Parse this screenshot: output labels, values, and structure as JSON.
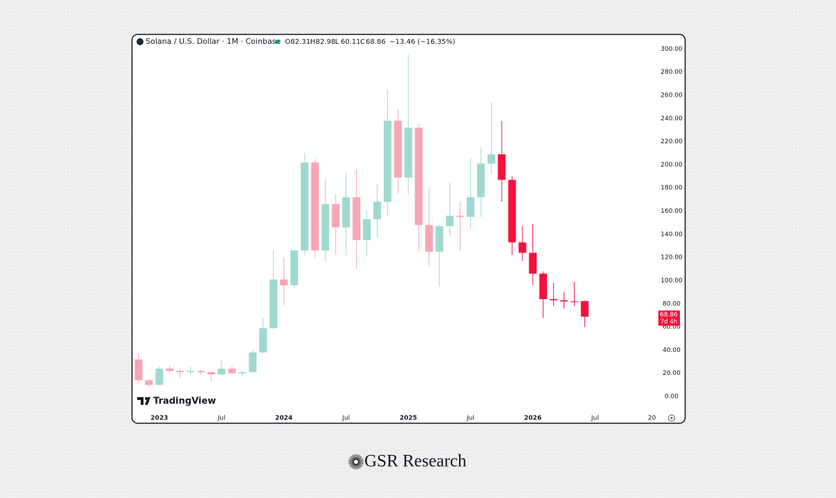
{
  "chart_data": {
    "type": "candlestick",
    "title": "Solana / U.S. Dollar · 1M · Coinbase",
    "ohlc_letters": [
      "O",
      "H",
      "L",
      "C"
    ],
    "change": "−13.46 (−16.35%)",
    "countdown": "7d 4h",
    "watermark": "TradingView",
    "open": [
      32,
      14,
      10,
      24,
      22,
      21,
      22,
      21,
      19,
      24,
      20,
      21,
      38,
      59,
      101,
      96,
      126,
      202,
      126,
      166,
      146,
      172,
      135,
      153,
      168,
      238,
      189,
      232,
      148,
      125,
      147,
      156,
      155,
      172,
      201,
      209,
      187,
      133,
      124,
      106,
      84,
      83,
      82,
      82.31
    ],
    "high": [
      38,
      15,
      26,
      26.5,
      24,
      26,
      23,
      21,
      32,
      26.5,
      22,
      40,
      68,
      126,
      120,
      126,
      210,
      205,
      188,
      175,
      193,
      196,
      161,
      183,
      265,
      248,
      295,
      235,
      180,
      148,
      185,
      168,
      206,
      215,
      254,
      238,
      190,
      147,
      149,
      108,
      98,
      90,
      99,
      82.98
    ],
    "low": [
      11,
      8,
      9.6,
      20,
      16,
      19,
      19,
      13,
      18.5,
      19,
      17,
      21,
      37,
      58,
      79,
      93,
      122,
      120,
      116,
      122,
      122,
      110,
      121,
      137,
      156,
      175,
      174,
      125,
      112,
      95,
      139,
      126,
      145,
      155,
      192,
      168,
      122,
      117,
      96,
      68,
      78,
      76,
      78,
      60.11
    ],
    "close": [
      14,
      10,
      24,
      22,
      21,
      22,
      21,
      19,
      24,
      20,
      21,
      38,
      59,
      101,
      96,
      126,
      202,
      126,
      166,
      146,
      172,
      135,
      153,
      168,
      238,
      189,
      232,
      148,
      125,
      147,
      156,
      155,
      172,
      201,
      209,
      187,
      133,
      124,
      106,
      84,
      83,
      82,
      82,
      68.86
    ],
    "colors": [
      "#f7a5b5",
      "#f7a5b5",
      "#9fd8cf",
      "#f7a5b5",
      "#f7a5b5",
      "#9fd8cf",
      "#f7a5b5",
      "#f7a5b5",
      "#9fd8cf",
      "#f7a5b5",
      "#9fd8cf",
      "#9fd8cf",
      "#9fd8cf",
      "#9fd8cf",
      "#f7a5b5",
      "#9fd8cf",
      "#9fd8cf",
      "#f7a5b5",
      "#9fd8cf",
      "#f7a5b5",
      "#9fd8cf",
      "#f7a5b5",
      "#9fd8cf",
      "#9fd8cf",
      "#9fd8cf",
      "#f7a5b5",
      "#9fd8cf",
      "#f7a5b5",
      "#f7a5b5",
      "#9fd8cf",
      "#9fd8cf",
      "#f7a5b5",
      "#9fd8cf",
      "#9fd8cf",
      "#9fd8cf",
      "#f5103c",
      "#f5103c",
      "#f5103c",
      "#f5103c",
      "#f5103c",
      "#f5103c",
      "#f5103c",
      "#f5103c",
      "#f5103c"
    ],
    "xlim": [
      -0.6,
      50.1
    ],
    "xticks": [
      {
        "value": 2,
        "label": "2023"
      },
      {
        "value": 8,
        "label": "Jul"
      },
      {
        "value": 14,
        "label": "2024"
      },
      {
        "value": 20,
        "label": "Jul"
      },
      {
        "value": 26,
        "label": "2025"
      },
      {
        "value": 32,
        "label": "Jul"
      },
      {
        "value": 38,
        "label": "2026"
      },
      {
        "value": 44,
        "label": "Jul"
      },
      {
        "value": 50,
        "label": "20"
      }
    ],
    "ylim": [
      -12,
      305
    ],
    "yticks": [
      {
        "value": 0,
        "label": "0.00"
      },
      {
        "value": 20,
        "label": "20.00"
      },
      {
        "value": 40,
        "label": "40.00"
      },
      {
        "value": 60,
        "label": "60.00"
      },
      {
        "value": 80,
        "label": "80.00"
      },
      {
        "value": 100,
        "label": "100.00"
      },
      {
        "value": 120,
        "label": "120.00"
      },
      {
        "value": 140,
        "label": "140.00"
      },
      {
        "value": 160,
        "label": "160.00"
      },
      {
        "value": 180,
        "label": "180.00"
      },
      {
        "value": 200,
        "label": "200.00"
      },
      {
        "value": 220,
        "label": "220.00"
      },
      {
        "value": 240,
        "label": "240.00"
      },
      {
        "value": 260,
        "label": "260.00"
      },
      {
        "value": 280,
        "label": "280.00"
      },
      {
        "value": 300,
        "label": "300.00"
      }
    ]
  },
  "brand": "GSR Research"
}
